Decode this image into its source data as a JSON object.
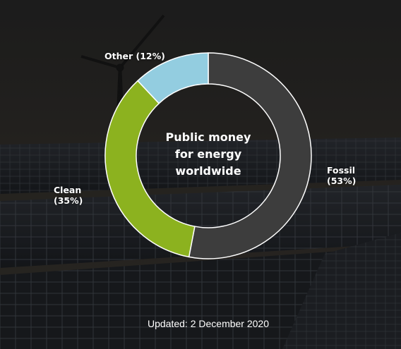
{
  "chart_data": {
    "type": "pie",
    "title_lines": [
      "Public money",
      "for energy",
      "worldwide"
    ],
    "categories": [
      "Fossil",
      "Clean",
      "Other"
    ],
    "values": [
      53,
      35,
      12
    ],
    "unit": "%",
    "colors": {
      "Fossil": "#3d3d3d",
      "Clean": "#8cb21f",
      "Other": "#93cde0"
    },
    "slice_labels": [
      {
        "name": "Fossil",
        "line1": "Fossil",
        "line2": "(53%)"
      },
      {
        "name": "Clean",
        "line1": "Clean",
        "line2": "(35%)"
      },
      {
        "name": "Other",
        "line1": "Other (12%)",
        "line2": ""
      }
    ]
  },
  "footer": {
    "updated": "Updated: 2 December 2020"
  }
}
